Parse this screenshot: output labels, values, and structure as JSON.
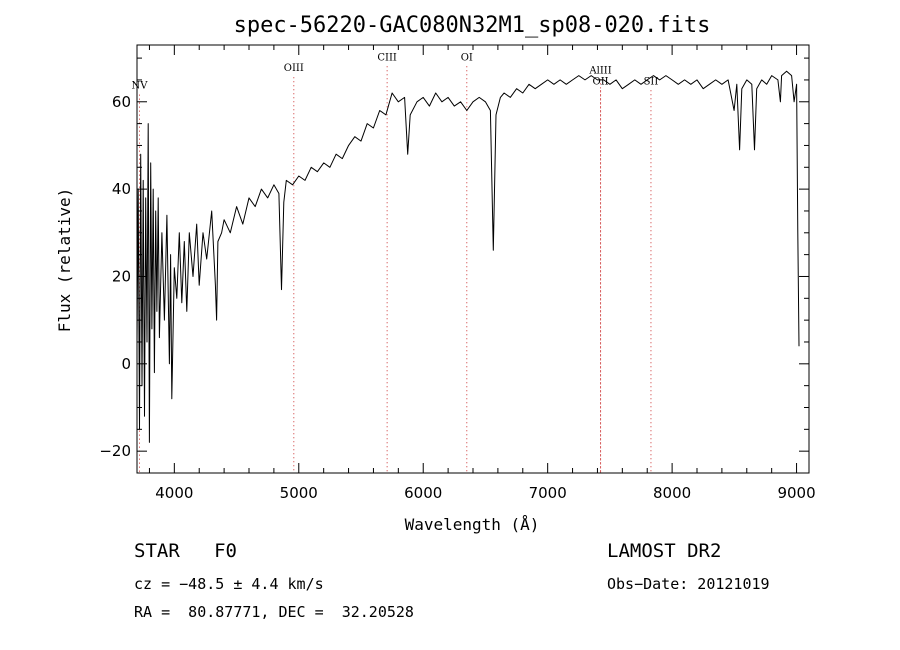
{
  "chart_data": {
    "type": "line",
    "title": "spec-56220-GAC080N32M1_sp08-020.fits",
    "xlabel": "Wavelength (Å)",
    "ylabel": "Flux (relative)",
    "xlim": [
      3700,
      9100
    ],
    "ylim": [
      -25,
      73
    ],
    "xticks": [
      4000,
      5000,
      6000,
      7000,
      8000,
      9000
    ],
    "yticks": [
      -20,
      0,
      20,
      40,
      60
    ],
    "series": [
      {
        "values": [
          [
            3700,
            5
          ],
          [
            3710,
            40
          ],
          [
            3720,
            -15
          ],
          [
            3730,
            48
          ],
          [
            3740,
            -5
          ],
          [
            3750,
            42
          ],
          [
            3760,
            -12
          ],
          [
            3770,
            38
          ],
          [
            3780,
            5
          ],
          [
            3790,
            55
          ],
          [
            3800,
            -18
          ],
          [
            3810,
            46
          ],
          [
            3820,
            8
          ],
          [
            3830,
            40
          ],
          [
            3840,
            -2
          ],
          [
            3850,
            35
          ],
          [
            3860,
            12
          ],
          [
            3870,
            38
          ],
          [
            3880,
            6
          ],
          [
            3900,
            30
          ],
          [
            3920,
            10
          ],
          [
            3940,
            34
          ],
          [
            3960,
            0
          ],
          [
            3970,
            25
          ],
          [
            3980,
            -8
          ],
          [
            4000,
            22
          ],
          [
            4020,
            15
          ],
          [
            4040,
            30
          ],
          [
            4060,
            14
          ],
          [
            4080,
            28
          ],
          [
            4100,
            12
          ],
          [
            4120,
            30
          ],
          [
            4150,
            20
          ],
          [
            4180,
            32
          ],
          [
            4200,
            18
          ],
          [
            4230,
            30
          ],
          [
            4260,
            24
          ],
          [
            4300,
            35
          ],
          [
            4330,
            18
          ],
          [
            4340,
            10
          ],
          [
            4350,
            28
          ],
          [
            4380,
            30
          ],
          [
            4400,
            33
          ],
          [
            4450,
            30
          ],
          [
            4500,
            36
          ],
          [
            4550,
            32
          ],
          [
            4600,
            38
          ],
          [
            4650,
            36
          ],
          [
            4700,
            40
          ],
          [
            4750,
            38
          ],
          [
            4800,
            41
          ],
          [
            4840,
            39
          ],
          [
            4861,
            17
          ],
          [
            4880,
            37
          ],
          [
            4900,
            42
          ],
          [
            4950,
            41
          ],
          [
            5000,
            43
          ],
          [
            5050,
            42
          ],
          [
            5100,
            45
          ],
          [
            5150,
            44
          ],
          [
            5200,
            46
          ],
          [
            5250,
            45
          ],
          [
            5300,
            48
          ],
          [
            5350,
            47
          ],
          [
            5400,
            50
          ],
          [
            5450,
            52
          ],
          [
            5500,
            51
          ],
          [
            5550,
            55
          ],
          [
            5600,
            54
          ],
          [
            5650,
            58
          ],
          [
            5700,
            57
          ],
          [
            5750,
            62
          ],
          [
            5800,
            60
          ],
          [
            5850,
            61
          ],
          [
            5875,
            48
          ],
          [
            5895,
            57
          ],
          [
            5950,
            60
          ],
          [
            6000,
            61
          ],
          [
            6050,
            59
          ],
          [
            6100,
            62
          ],
          [
            6150,
            60
          ],
          [
            6200,
            61
          ],
          [
            6250,
            59
          ],
          [
            6300,
            60
          ],
          [
            6350,
            58
          ],
          [
            6400,
            60
          ],
          [
            6450,
            61
          ],
          [
            6500,
            60
          ],
          [
            6540,
            58
          ],
          [
            6563,
            26
          ],
          [
            6585,
            57
          ],
          [
            6620,
            61
          ],
          [
            6650,
            62
          ],
          [
            6700,
            61
          ],
          [
            6750,
            63
          ],
          [
            6800,
            62
          ],
          [
            6850,
            64
          ],
          [
            6900,
            63
          ],
          [
            6950,
            64
          ],
          [
            7000,
            65
          ],
          [
            7050,
            64
          ],
          [
            7100,
            65
          ],
          [
            7150,
            64
          ],
          [
            7200,
            65
          ],
          [
            7250,
            66
          ],
          [
            7300,
            65
          ],
          [
            7350,
            66
          ],
          [
            7400,
            65
          ],
          [
            7450,
            65
          ],
          [
            7500,
            64
          ],
          [
            7550,
            65
          ],
          [
            7600,
            63
          ],
          [
            7650,
            64
          ],
          [
            7700,
            65
          ],
          [
            7750,
            64
          ],
          [
            7800,
            65
          ],
          [
            7850,
            66
          ],
          [
            7900,
            65
          ],
          [
            7950,
            66
          ],
          [
            8000,
            65
          ],
          [
            8050,
            64
          ],
          [
            8100,
            65
          ],
          [
            8150,
            64
          ],
          [
            8200,
            65
          ],
          [
            8250,
            63
          ],
          [
            8300,
            64
          ],
          [
            8350,
            65
          ],
          [
            8400,
            64
          ],
          [
            8450,
            65
          ],
          [
            8498,
            58
          ],
          [
            8520,
            64
          ],
          [
            8542,
            49
          ],
          [
            8560,
            63
          ],
          [
            8600,
            65
          ],
          [
            8640,
            64
          ],
          [
            8662,
            49
          ],
          [
            8680,
            63
          ],
          [
            8720,
            65
          ],
          [
            8760,
            64
          ],
          [
            8800,
            66
          ],
          [
            8850,
            65
          ],
          [
            8870,
            60
          ],
          [
            8880,
            66
          ],
          [
            8920,
            67
          ],
          [
            8960,
            66
          ],
          [
            8980,
            60
          ],
          [
            9000,
            64
          ],
          [
            9010,
            30
          ],
          [
            9020,
            4
          ]
        ]
      }
    ],
    "line_markers": [
      {
        "label": "NV",
        "x": 3720,
        "label_y": 63
      },
      {
        "label": "OIII",
        "x": 4960,
        "label_y": 67
      },
      {
        "label": "CIII",
        "x": 5710,
        "label_y": 69.5
      },
      {
        "label": "OI",
        "x": 6350,
        "label_y": 69.5
      },
      {
        "label": "AlIII",
        "x": 7425,
        "label_y": 66.5
      },
      {
        "label": "OII",
        "x": 7425,
        "label_y": 64
      },
      {
        "label": "SII",
        "x": 7830,
        "label_y": 64
      }
    ],
    "grid": false,
    "colors": {
      "line": "#000000",
      "marker_line": "#cc3333",
      "marker_label": "#000000"
    }
  },
  "info": {
    "object_class": "STAR",
    "subclass": "F0",
    "survey": "LAMOST DR2",
    "redshift": "cz = −48.5 ± 4.4 km/s",
    "obs_date": "Obs−Date: 20121019",
    "coords": "RA =  80.87771, DEC =  32.20528"
  }
}
